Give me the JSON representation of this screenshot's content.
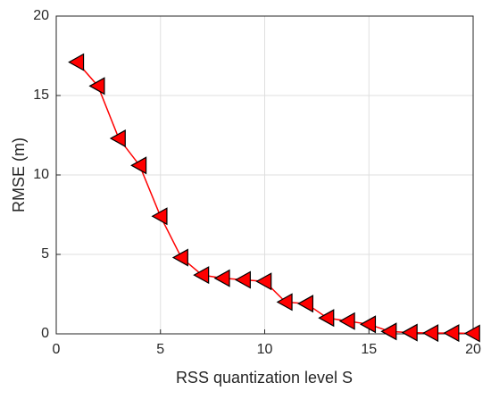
{
  "chart_data": {
    "type": "line",
    "xlabel": "RSS quantization level S",
    "ylabel": "RMSE (m)",
    "x": [
      1,
      2,
      3,
      4,
      5,
      6,
      7,
      8,
      9,
      10,
      11,
      12,
      13,
      14,
      15,
      16,
      17,
      18,
      19,
      20
    ],
    "values": [
      17.1,
      15.6,
      12.3,
      10.6,
      7.4,
      4.8,
      3.7,
      3.5,
      3.4,
      3.3,
      2.0,
      1.9,
      1.0,
      0.8,
      0.6,
      0.15,
      0.08,
      0.05,
      0.05,
      0.03
    ],
    "color": "#ff0000",
    "marker": "triangle-left",
    "marker_edgecolor": "#000000",
    "xlim": [
      0,
      20
    ],
    "xticks": [
      0,
      5,
      10,
      15,
      20
    ],
    "ylim": [
      0,
      20
    ],
    "yticks": [
      0,
      5,
      10,
      15,
      20
    ],
    "grid": true
  }
}
